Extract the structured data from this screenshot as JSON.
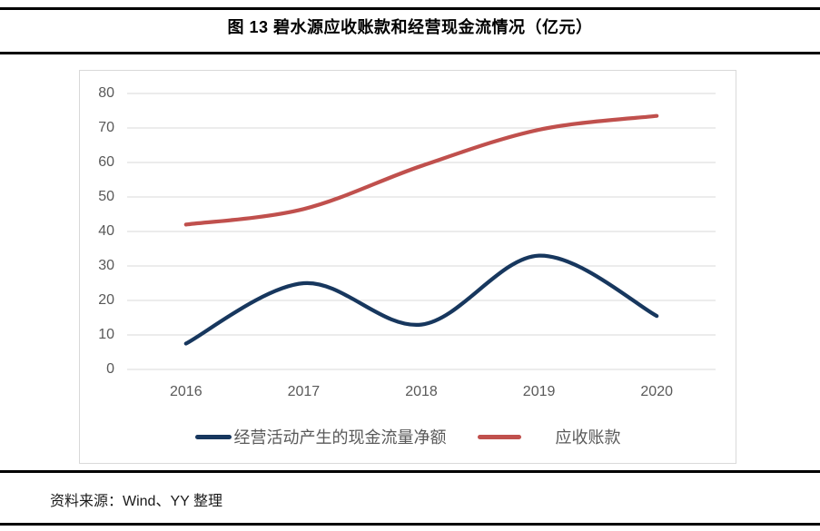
{
  "header": {
    "title": "图 13 碧水源应收账款和经营现金流情况（亿元）"
  },
  "footer": {
    "source_note": "资料来源：Wind、YY 整理"
  },
  "colors": {
    "rule": "#000000",
    "chart_border": "#D9D9D9",
    "gridline": "#D9D9D9",
    "axis_text": "#595959",
    "cashflow_line": "#17375E",
    "receivables_line": "#C0504D"
  },
  "chart_data": {
    "type": "line",
    "title": "图 13 碧水源应收账款和经营现金流情况（亿元）",
    "x": [
      "2016",
      "2017",
      "2018",
      "2019",
      "2020"
    ],
    "series": [
      {
        "name": "经营活动产生的现金流量净额",
        "color": "#17375E",
        "values": [
          7.5,
          25,
          13,
          33,
          15.5
        ]
      },
      {
        "name": "应收账款",
        "color": "#C0504D",
        "values": [
          42,
          46.5,
          59,
          69.5,
          73.5
        ]
      }
    ],
    "ylim": [
      0,
      80
    ],
    "ytick_step": 10,
    "grid": true,
    "smooth": true,
    "legend_position": "bottom",
    "xlabel": "",
    "ylabel": ""
  }
}
